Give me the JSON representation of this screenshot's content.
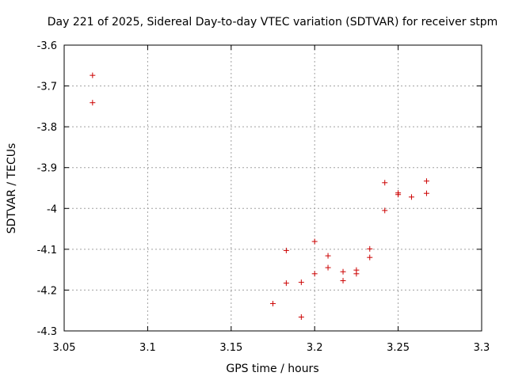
{
  "chart_data": {
    "type": "scatter",
    "title": "Day 221 of 2025, Sidereal Day-to-day VTEC variation (SDTVAR) for receiver stpm",
    "xlabel": "GPS time / hours",
    "ylabel": "SDTVAR / TECUs",
    "xlim": [
      3.05,
      3.3
    ],
    "ylim": [
      -4.3,
      -3.6
    ],
    "xticks": [
      3.05,
      3.1,
      3.15,
      3.2,
      3.25,
      3.3
    ],
    "xtick_labels": [
      "3.05",
      "3.1",
      "3.15",
      "3.2",
      "3.25",
      "3.3"
    ],
    "yticks": [
      -4.3,
      -4.2,
      -4.1,
      -4.0,
      -3.9,
      -3.8,
      -3.7,
      -3.6
    ],
    "ytick_labels": [
      "-4.3",
      "-4.2",
      "-4.1",
      "-4",
      "-3.9",
      "-3.8",
      "-3.7",
      "-3.6"
    ],
    "grid": true,
    "marker": "+",
    "color": "#cc0000",
    "series": [
      {
        "name": "SDTVAR",
        "points": [
          [
            3.067,
            -3.674
          ],
          [
            3.067,
            -3.741
          ],
          [
            3.175,
            -4.233
          ],
          [
            3.183,
            -4.103
          ],
          [
            3.183,
            -4.183
          ],
          [
            3.192,
            -4.181
          ],
          [
            3.192,
            -4.266
          ],
          [
            3.2,
            -4.081
          ],
          [
            3.2,
            -4.16
          ],
          [
            3.208,
            -4.116
          ],
          [
            3.208,
            -4.145
          ],
          [
            3.217,
            -4.155
          ],
          [
            3.217,
            -4.177
          ],
          [
            3.225,
            -4.151
          ],
          [
            3.225,
            -4.16
          ],
          [
            3.233,
            -4.099
          ],
          [
            3.233,
            -4.12
          ],
          [
            3.242,
            -3.937
          ],
          [
            3.242,
            -4.005
          ],
          [
            3.25,
            -3.962
          ],
          [
            3.25,
            -3.966
          ],
          [
            3.258,
            -3.972
          ],
          [
            3.267,
            -3.933
          ],
          [
            3.267,
            -3.963
          ]
        ]
      }
    ]
  }
}
